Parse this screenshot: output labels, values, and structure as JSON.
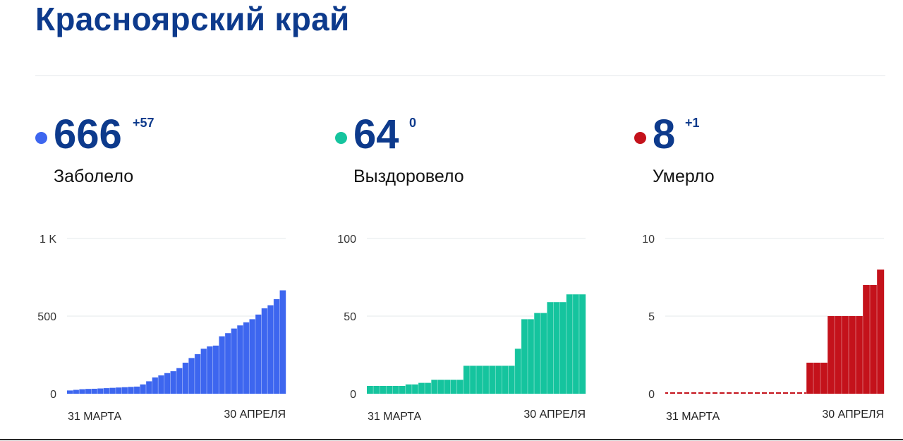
{
  "page": {
    "title": "Красноярский край"
  },
  "stats": [
    {
      "value": "666",
      "delta": "+57",
      "label": "Заболело",
      "color": "#3d66ef"
    },
    {
      "value": "64",
      "delta": "0",
      "label": "Выздоровело",
      "color": "#15c49e"
    },
    {
      "value": "8",
      "delta": "+1",
      "label": "Умерло",
      "color": "#c4121b"
    }
  ],
  "chart_data": [
    {
      "type": "bar",
      "title": "Заболело",
      "ylim": [
        0,
        1000
      ],
      "yticks": [
        "0",
        "500",
        "1 K"
      ],
      "ytick_values": [
        0,
        500,
        1000
      ],
      "xlabels": [
        "31 МАРТА",
        "30 АПРЕЛЯ"
      ],
      "color": "#3d66ef",
      "grid": true,
      "values": [
        21,
        25,
        29,
        31,
        32,
        34,
        36,
        38,
        40,
        42,
        44,
        46,
        60,
        80,
        105,
        118,
        133,
        145,
        165,
        200,
        230,
        255,
        290,
        305,
        310,
        370,
        390,
        420,
        440,
        460,
        480,
        510,
        550,
        570,
        609,
        666
      ]
    },
    {
      "type": "bar",
      "title": "Выздоровело",
      "ylim": [
        0,
        100
      ],
      "yticks": [
        "0",
        "50",
        "100"
      ],
      "ytick_values": [
        0,
        50,
        100
      ],
      "xlabels": [
        "31 МАРТА",
        "30 АПРЕЛЯ"
      ],
      "color": "#15c49e",
      "grid": true,
      "values": [
        5,
        5,
        5,
        5,
        5,
        5,
        6,
        6,
        7,
        7,
        9,
        9,
        9,
        9,
        9,
        18,
        18,
        18,
        18,
        18,
        18,
        18,
        18,
        29,
        48,
        48,
        52,
        52,
        59,
        59,
        59,
        64,
        64,
        64
      ]
    },
    {
      "type": "bar",
      "title": "Умерло",
      "ylim": [
        0,
        10
      ],
      "yticks": [
        "0",
        "5",
        "10"
      ],
      "ytick_values": [
        0,
        5,
        10
      ],
      "xlabels": [
        "31 МАРТА",
        "30 АПРЕЛЯ"
      ],
      "color": "#c4121b",
      "grid": true,
      "values": [
        0,
        0,
        0,
        0,
        0,
        0,
        0,
        0,
        0,
        0,
        0,
        0,
        0,
        0,
        0,
        0,
        0,
        0,
        0,
        0,
        2,
        2,
        2,
        5,
        5,
        5,
        5,
        5,
        7,
        7,
        8
      ]
    }
  ]
}
